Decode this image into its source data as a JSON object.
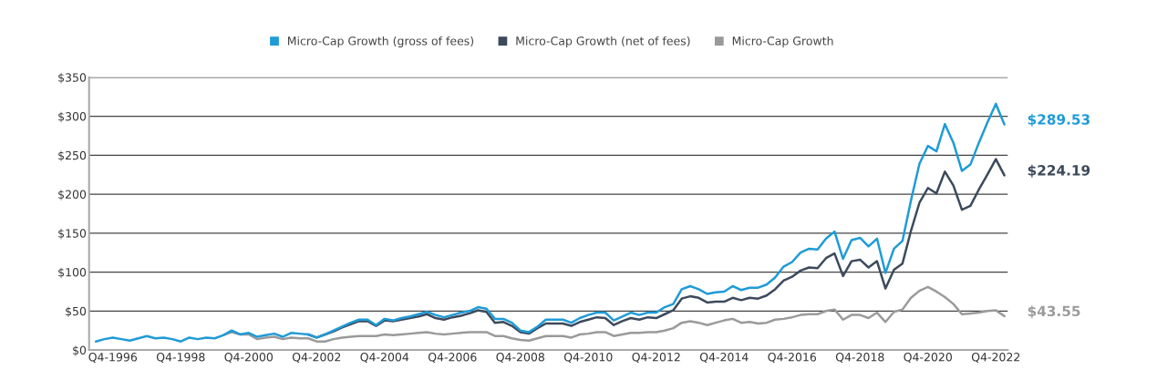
{
  "chart_data": {
    "type": "line",
    "categories": [
      null,
      null,
      "Q4-1996",
      null,
      null,
      null,
      null,
      null,
      null,
      null,
      "Q4-1998",
      null,
      null,
      null,
      null,
      null,
      null,
      null,
      "Q4-2000",
      null,
      null,
      null,
      null,
      null,
      null,
      null,
      "Q4-2002",
      null,
      null,
      null,
      null,
      null,
      null,
      null,
      "Q4-2004",
      null,
      null,
      null,
      null,
      null,
      null,
      null,
      "Q4-2006",
      null,
      null,
      null,
      null,
      null,
      null,
      null,
      "Q4-2008",
      null,
      null,
      null,
      null,
      null,
      null,
      null,
      "Q4-2010",
      null,
      null,
      null,
      null,
      null,
      null,
      null,
      "Q4-2012",
      null,
      null,
      null,
      null,
      null,
      null,
      null,
      "Q4-2014",
      null,
      null,
      null,
      null,
      null,
      null,
      null,
      "Q4-2016",
      null,
      null,
      null,
      null,
      null,
      null,
      null,
      "Q4-2018",
      null,
      null,
      null,
      null,
      null,
      null,
      null,
      "Q4-2020",
      null,
      null,
      null,
      null,
      null,
      null,
      null,
      "Q4-2022",
      null
    ],
    "series": [
      {
        "name": "Micro-Cap Growth (gross of fees)",
        "color": "#1f9bd7",
        "values": [
          11,
          14,
          16,
          14,
          12,
          15,
          18,
          15,
          16,
          14,
          11,
          16,
          14,
          16,
          15,
          19,
          25,
          20,
          22,
          17,
          19,
          21,
          17,
          22,
          21,
          20,
          16,
          20,
          25,
          30,
          35,
          39,
          39,
          32,
          40,
          38,
          41,
          43,
          46,
          49,
          45,
          42,
          45,
          48,
          50,
          55,
          53,
          40,
          40,
          35,
          25,
          23,
          30,
          39,
          39,
          39,
          35,
          41,
          45,
          48,
          48,
          38,
          43,
          48,
          45,
          48,
          48,
          55,
          59,
          78,
          82,
          78,
          72,
          74,
          75,
          82,
          77,
          80,
          80,
          84,
          93,
          107,
          113,
          125,
          130,
          129,
          143,
          152,
          117,
          141,
          144,
          133,
          143,
          99,
          130,
          140,
          192,
          239,
          262,
          255,
          290,
          266,
          230,
          238,
          266,
          292,
          316,
          289.53
        ]
      },
      {
        "name": "Micro-Cap Growth (net of fees)",
        "color": "#3d4a5c",
        "values": [
          null,
          null,
          null,
          null,
          null,
          null,
          null,
          null,
          null,
          null,
          null,
          null,
          null,
          null,
          null,
          null,
          null,
          null,
          null,
          null,
          null,
          null,
          null,
          null,
          null,
          20,
          16,
          20,
          24,
          29,
          33,
          37,
          37,
          31,
          38,
          37,
          39,
          41,
          43,
          46,
          41,
          39,
          42,
          44,
          47,
          51,
          49,
          35,
          36,
          31,
          23,
          21,
          28,
          34,
          34,
          34,
          31,
          36,
          39,
          42,
          41,
          32,
          37,
          41,
          39,
          42,
          41,
          46,
          51,
          66,
          69,
          67,
          61,
          62,
          62,
          67,
          64,
          67,
          66,
          70,
          78,
          89,
          94,
          102,
          106,
          105,
          118,
          124,
          95,
          114,
          116,
          106,
          114,
          79,
          103,
          111,
          153,
          189,
          208,
          201,
          229,
          211,
          180,
          185,
          206,
          225,
          245,
          224.19
        ]
      },
      {
        "name": "Micro-Cap Growth",
        "color": "#9a9a9a",
        "values": [
          null,
          null,
          null,
          null,
          null,
          null,
          null,
          null,
          null,
          null,
          null,
          null,
          null,
          null,
          null,
          19,
          23,
          20,
          20,
          14,
          16,
          17,
          14,
          16,
          15,
          15,
          11,
          11,
          14,
          16,
          17,
          18,
          18,
          18,
          20,
          19,
          20,
          21,
          22,
          23,
          21,
          20,
          21,
          22,
          23,
          23,
          23,
          18,
          18,
          15,
          13,
          12,
          15,
          18,
          18,
          18,
          16,
          20,
          21,
          23,
          23,
          18,
          20,
          22,
          22,
          23,
          23,
          25,
          28,
          35,
          37,
          35,
          32,
          35,
          38,
          40,
          35,
          36,
          34,
          35,
          39,
          40,
          42,
          45,
          46,
          46,
          50,
          52,
          39,
          45,
          45,
          41,
          48,
          36,
          49,
          52,
          67,
          76,
          81,
          75,
          68,
          59,
          46,
          47,
          48,
          50,
          51,
          43.55
        ]
      }
    ],
    "ylim": [
      0,
      350
    ],
    "yticks": [
      {
        "value": 0,
        "label": "$0"
      },
      {
        "value": 50,
        "label": "$50"
      },
      {
        "value": 100,
        "label": "$100"
      },
      {
        "value": 150,
        "label": "$150"
      },
      {
        "value": 200,
        "label": "$200"
      },
      {
        "value": 250,
        "label": "$250"
      },
      {
        "value": 300,
        "label": "$300"
      },
      {
        "value": 350,
        "label": "$350"
      }
    ],
    "annotations": [
      "$289.53",
      "$224.19",
      "$43.55"
    ],
    "grid": "y",
    "legend": "top",
    "marker": "none",
    "line_style": "solid"
  }
}
